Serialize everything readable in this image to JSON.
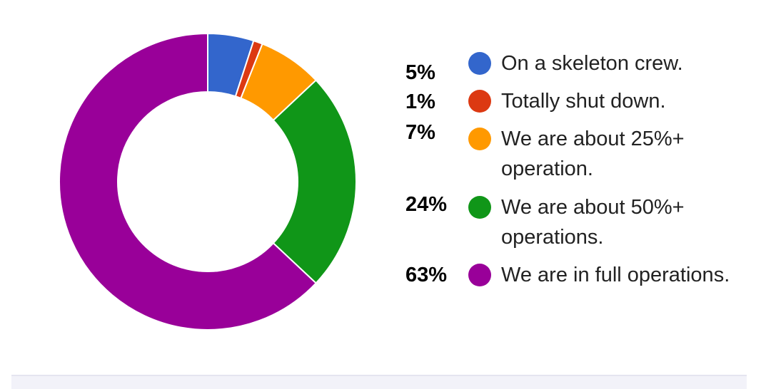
{
  "chart_data": {
    "type": "pie",
    "style": "donut",
    "title": "",
    "categories": [
      "On a skeleton crew.",
      "Totally shut down.",
      "We are about 25%+ operation.",
      "We are about 50%+ operations.",
      "We are in full operations."
    ],
    "values": [
      5,
      1,
      7,
      24,
      63
    ],
    "value_labels": [
      "5%",
      "1%",
      "7%",
      "24%",
      "63%"
    ],
    "colors": [
      "#3366cc",
      "#dc3912",
      "#ff9900",
      "#109618",
      "#990099"
    ],
    "legend_position": "right"
  }
}
